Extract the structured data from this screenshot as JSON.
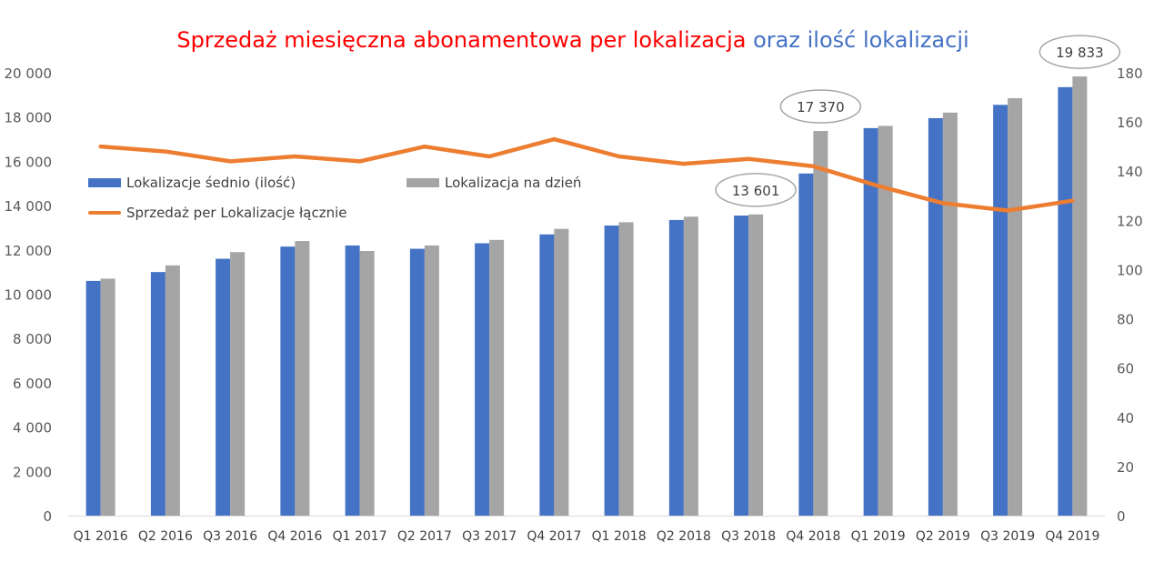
{
  "chart_data": {
    "type": "bar",
    "title_part1": "Sprzedaż miesięczna abonamentowa per lokalizacja",
    "title_part2": "oraz ilość lokalizacji",
    "categories": [
      "Q1 2016",
      "Q2 2016",
      "Q3 2016",
      "Q4 2016",
      "Q1 2017",
      "Q2 2017",
      "Q3 2017",
      "Q4 2017",
      "Q1 2018",
      "Q2 2018",
      "Q3 2018",
      "Q4 2018",
      "Q1 2019",
      "Q2 2019",
      "Q3 2019",
      "Q4 2019"
    ],
    "series": [
      {
        "name": "Lokalizacje śednio (ilość)",
        "type": "bar",
        "axis": "left",
        "color": "#4472c4",
        "values": [
          10600,
          11000,
          11600,
          12150,
          12200,
          12050,
          12300,
          12700,
          13100,
          13350,
          13550,
          15450,
          17500,
          17950,
          18550,
          19350
        ]
      },
      {
        "name": "Lokalizacja na dzień",
        "type": "bar",
        "axis": "left",
        "color": "#a5a5a5",
        "values": [
          10700,
          11300,
          11900,
          12400,
          11950,
          12200,
          12450,
          12950,
          13250,
          13500,
          13601,
          17370,
          17600,
          18200,
          18850,
          19833
        ]
      },
      {
        "name": "Sprzedaż per Lokalizacje łącznie",
        "type": "line",
        "axis": "right",
        "color": "#ed7d31",
        "values": [
          150,
          148,
          144,
          146,
          144,
          150,
          146,
          153,
          146,
          143,
          145,
          142,
          134,
          127,
          124,
          128
        ]
      }
    ],
    "callouts": [
      {
        "category_index": 10,
        "series_index": 1,
        "label": "13 601"
      },
      {
        "category_index": 11,
        "series_index": 1,
        "label": "17 370"
      },
      {
        "category_index": 15,
        "series_index": 1,
        "label": "19 833"
      }
    ],
    "y_left": {
      "min": 0,
      "max": 20000,
      "step": 2000,
      "tick_labels": [
        "0",
        "2 000",
        "4 000",
        "6 000",
        "8 000",
        "10 000",
        "12 000",
        "14 000",
        "16 000",
        "18 000",
        "20 000"
      ]
    },
    "y_right": {
      "min": 0,
      "max": 180,
      "step": 20,
      "tick_labels": [
        "0",
        "20",
        "40",
        "60",
        "80",
        "100",
        "120",
        "140",
        "160",
        "180"
      ]
    },
    "grid": false,
    "legend_position": "upper-left inside plot"
  }
}
